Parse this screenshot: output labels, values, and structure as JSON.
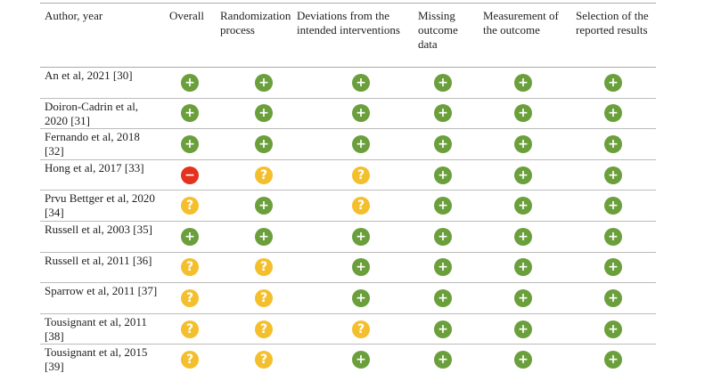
{
  "table": {
    "header": [
      "Author, year",
      "Overall",
      "Randomization process",
      "Deviations from the intended interventions",
      "Missing outcome data",
      "Measurement of the outcome",
      "Selection of the reported results"
    ],
    "rows": [
      [
        "An et al, 2021 [30]",
        "+",
        "+",
        "+",
        "+",
        "+",
        "+"
      ],
      [
        "Doiron-Cadrin et al, 2020 [31]",
        "+",
        "+",
        "+",
        "+",
        "+",
        "+"
      ],
      [
        "Fernando et al, 2018 [32]",
        "+",
        "+",
        "+",
        "+",
        "+",
        "+"
      ],
      [
        "Hong et al, 2017 [33]",
        "−",
        "?",
        "?",
        "+",
        "+",
        "+"
      ],
      [
        "Prvu Bettger et al, 2020 [34]",
        "?",
        "+",
        "?",
        "+",
        "+",
        "+"
      ],
      [
        "Russell et al, 2003 [35]",
        "+",
        "+",
        "+",
        "+",
        "+",
        "+"
      ],
      [
        "Russell et al, 2011 [36]",
        "?",
        "?",
        "+",
        "+",
        "+",
        "+"
      ],
      [
        "Sparrow et al, 2011 [37]",
        "?",
        "?",
        "+",
        "+",
        "+",
        "+"
      ],
      [
        "Tousignant et al, 2011 [38]",
        "?",
        "?",
        "?",
        "+",
        "+",
        "+"
      ],
      [
        "Tousignant et al, 2015 [39]",
        "?",
        "?",
        "+",
        "+",
        "+",
        "+"
      ]
    ],
    "colors": {
      "+": "#6b9f3c",
      "?": "#f4bf2d",
      "−": "#e5321e"
    }
  }
}
